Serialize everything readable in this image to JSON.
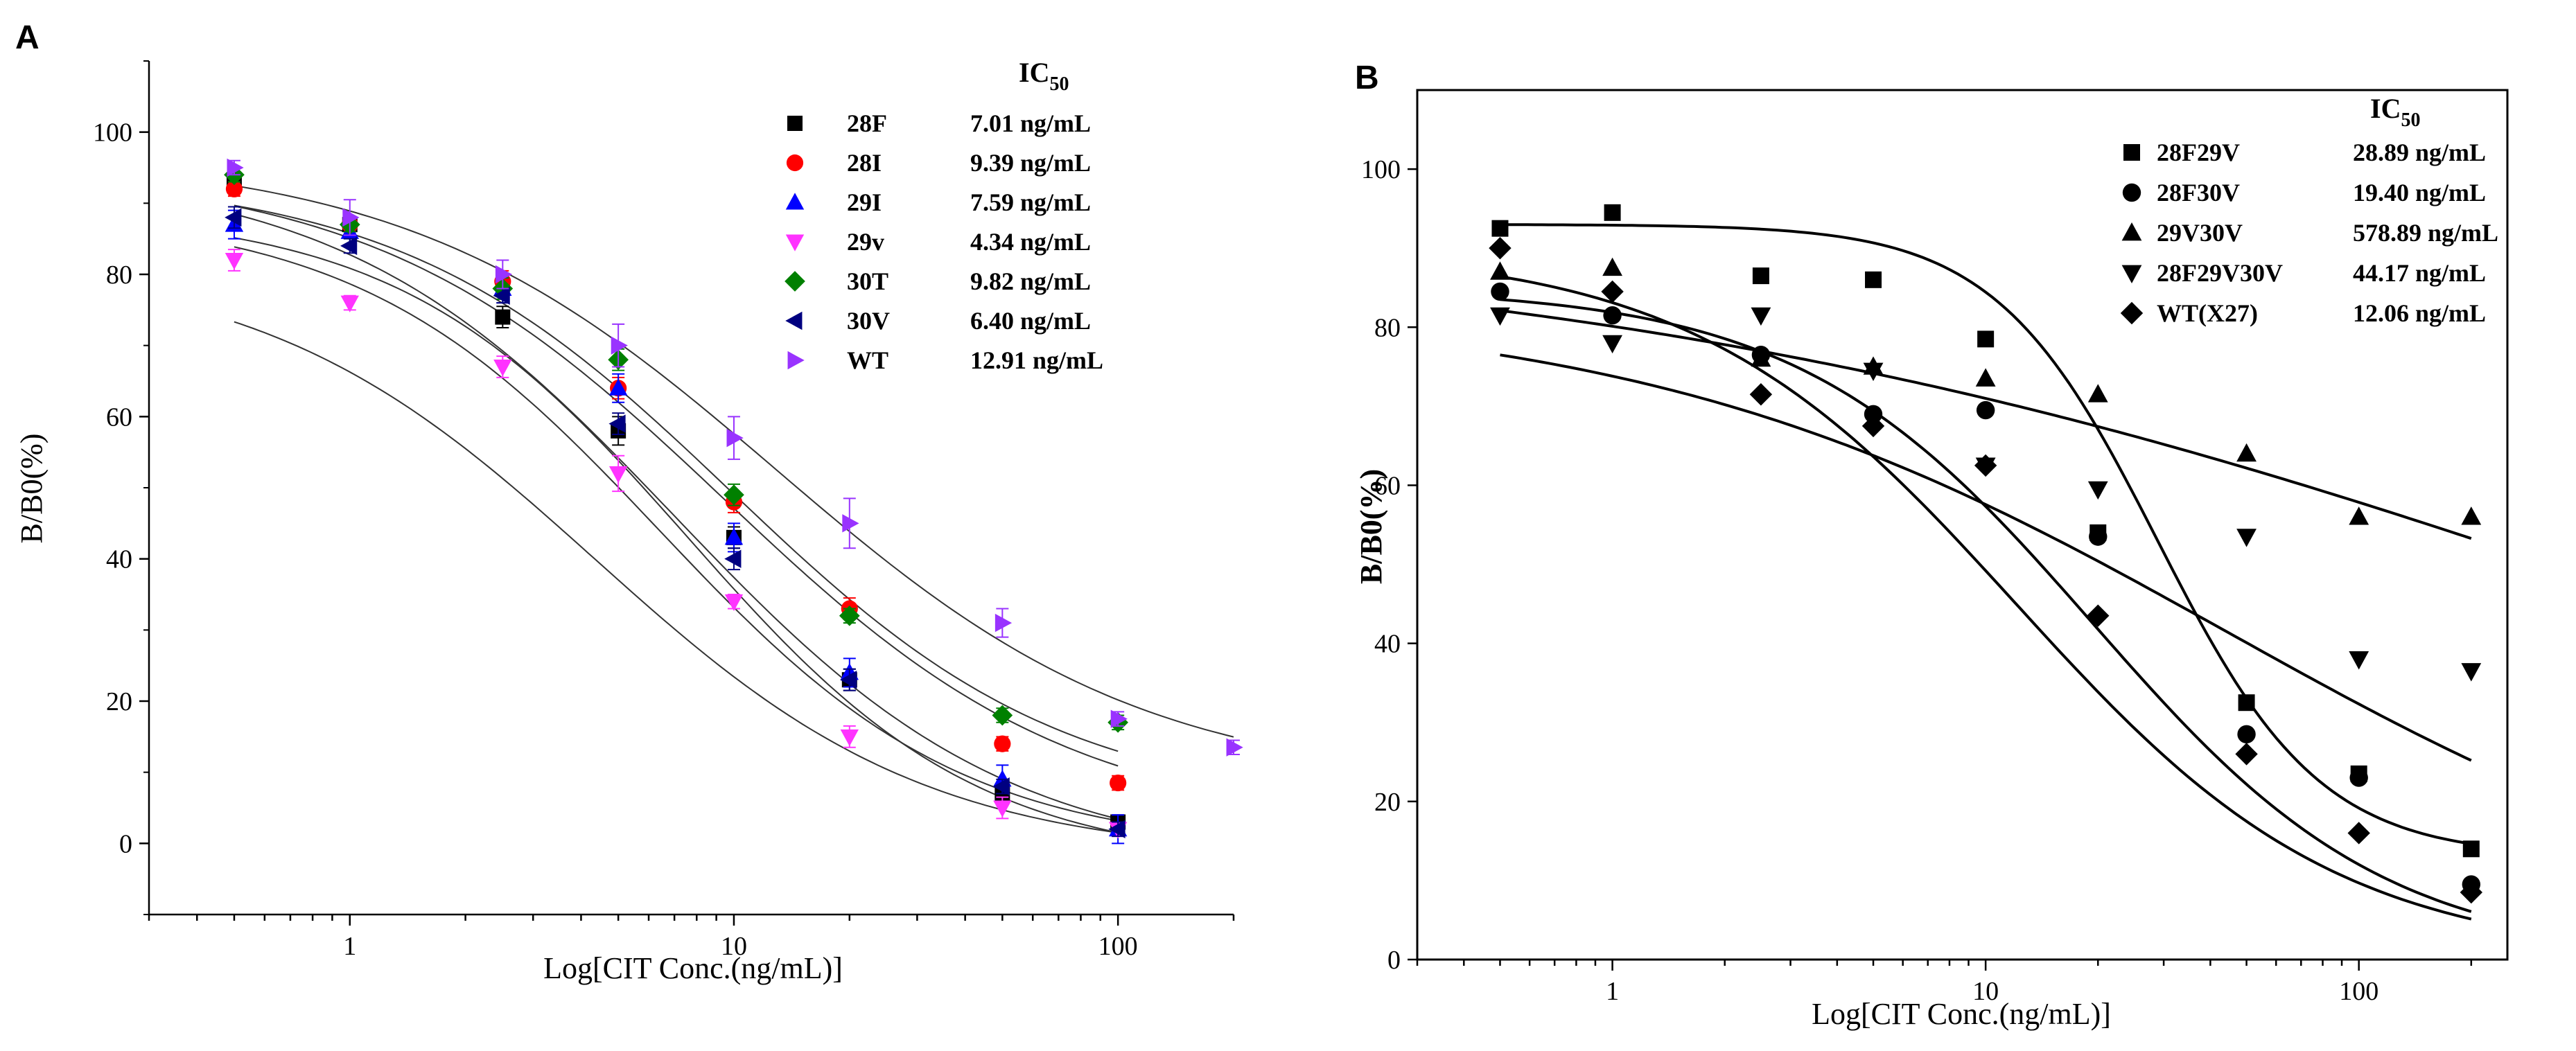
{
  "chart_data": [
    {
      "type": "scatter",
      "panel_label": "A",
      "xlabel": "Log[CIT Conc.(ng/mL)]",
      "ylabel": "B/B0(%)",
      "x_scale": "log",
      "xlim": [
        0.3,
        200
      ],
      "ylim": [
        -10,
        110
      ],
      "x_ticks": [
        1,
        10,
        100
      ],
      "y_ticks": [
        0,
        20,
        40,
        60,
        80,
        100
      ],
      "legend_header": "IC",
      "legend_header_sub": "50",
      "unit": "ng/mL",
      "x": [
        0.5,
        1,
        2.5,
        5,
        10,
        20,
        50,
        100
      ],
      "series": [
        {
          "name": "28F",
          "ic50": "7.01",
          "color": "#000000",
          "marker": "square",
          "values": [
            93,
            87,
            74,
            58,
            43,
            23,
            7,
            3
          ],
          "errors": [
            1,
            1,
            1.5,
            2,
            1.5,
            1.5,
            1,
            1
          ],
          "fit": {
            "top": 95,
            "bottom": -3,
            "ic50": 7.01,
            "hill": 1.0,
            "xmax": 100
          }
        },
        {
          "name": "28I",
          "ic50": "9.39",
          "color": "#ff0000",
          "marker": "circle",
          "values": [
            92,
            87,
            79,
            64,
            48,
            33,
            14,
            8.5
          ],
          "errors": [
            1,
            1,
            1.5,
            1.5,
            1.5,
            1.5,
            1,
            1
          ],
          "fit": {
            "top": 95,
            "bottom": 2,
            "ic50": 9.39,
            "hill": 0.95,
            "xmax": 100
          }
        },
        {
          "name": "29I",
          "ic50": "7.59",
          "color": "#0000ff",
          "marker": "triangle-up",
          "values": [
            87,
            86,
            78,
            64,
            43,
            24,
            9,
            2
          ],
          "errors": [
            2,
            2,
            2,
            2,
            2,
            2,
            2,
            2
          ],
          "fit": {
            "top": 89,
            "bottom": -3,
            "ic50": 7.59,
            "hill": 1.15,
            "xmax": 100
          }
        },
        {
          "name": "29v",
          "ic50": "4.34",
          "color": "#ff33ff",
          "marker": "triangle-down",
          "values": [
            82,
            76,
            67,
            52,
            34,
            15,
            5,
            2
          ],
          "errors": [
            1.5,
            1,
            1.5,
            2.5,
            1,
            1.5,
            1.5,
            1
          ],
          "fit": {
            "top": 82,
            "bottom": -2,
            "ic50": 4.34,
            "hill": 1.0,
            "xmax": 100
          }
        },
        {
          "name": "30T",
          "ic50": "9.82",
          "color": "#008000",
          "marker": "diamond",
          "values": [
            94,
            87,
            78,
            68,
            49,
            32,
            18,
            17
          ],
          "errors": [
            1,
            1,
            1.5,
            1.5,
            1.5,
            1,
            1,
            1
          ],
          "fit": {
            "top": 94,
            "bottom": 5,
            "ic50": 9.82,
            "hill": 1.0,
            "xmax": 100
          }
        },
        {
          "name": "30V",
          "ic50": "6.40",
          "color": "#000080",
          "marker": "triangle-left",
          "values": [
            88,
            84,
            77,
            59,
            40,
            23,
            8,
            2
          ],
          "errors": [
            1.5,
            1,
            1,
            1.5,
            1.5,
            1.5,
            1,
            1
          ],
          "fit": {
            "top": 89,
            "bottom": -1,
            "ic50": 6.4,
            "hill": 1.1,
            "xmax": 100
          }
        },
        {
          "name": "WT",
          "ic50": "12.91",
          "color": "#9933ff",
          "marker": "triangle-right",
          "values": [
            95,
            88,
            80,
            70,
            57,
            45,
            31,
            17.5,
            13.5
          ],
          "errors": [
            1,
            2.5,
            2,
            3,
            3,
            3.5,
            2,
            1,
            1
          ],
          "x_override": [
            0.5,
            1,
            2.5,
            5,
            10,
            20,
            50,
            100,
            200
          ],
          "fit": {
            "top": 97,
            "bottom": 8,
            "ic50": 12.91,
            "hill": 0.9,
            "xmax": 200
          }
        }
      ]
    },
    {
      "type": "scatter",
      "panel_label": "B",
      "xlabel": "Log[CIT Conc.(ng/mL)]",
      "ylabel": "B/B0(%)",
      "x_scale": "log",
      "xlim": [
        0.3,
        250
      ],
      "ylim": [
        0,
        110
      ],
      "x_ticks": [
        1,
        10,
        100
      ],
      "y_ticks": [
        0,
        20,
        40,
        60,
        80,
        100
      ],
      "legend_header": "IC",
      "legend_header_sub": "50",
      "unit": "ng/mL",
      "x": [
        0.5,
        1,
        2.5,
        5,
        10,
        20,
        50,
        100,
        200
      ],
      "series": [
        {
          "name": "28F29V",
          "ic50": "28.89",
          "color": "#000000",
          "marker": "square",
          "values": [
            92.5,
            94.5,
            86.5,
            86,
            78.5,
            54,
            32.5,
            23.5,
            14
          ],
          "fit": {
            "top": 93,
            "bottom": 13,
            "ic50": 28.89,
            "hill": 2.0
          }
        },
        {
          "name": "28F30V",
          "ic50": "19.40",
          "color": "#000000",
          "marker": "circle",
          "values": [
            84.5,
            81.5,
            76.5,
            69,
            69.5,
            53.5,
            28.5,
            23,
            9.5
          ],
          "fit": {
            "top": 85,
            "bottom": 0,
            "ic50": 19.4,
            "hill": 1.1
          }
        },
        {
          "name": "29V30V",
          "ic50": "578.89",
          "color": "#000000",
          "marker": "triangle-up",
          "values": [
            87,
            87.5,
            76,
            75,
            73.5,
            71.5,
            64,
            56,
            56
          ],
          "fit": {
            "top": 92,
            "bottom": 0,
            "ic50": 578.89,
            "hill": 0.3
          }
        },
        {
          "name": "28F29V30V",
          "ic50": "44.17",
          "color": "#000000",
          "marker": "triangle-down",
          "values": [
            81.5,
            78,
            81.5,
            74.5,
            62.5,
            59.5,
            53.5,
            38,
            36.5
          ],
          "fit": {
            "top": 83,
            "bottom": 0,
            "ic50": 44.17,
            "hill": 0.55
          }
        },
        {
          "name": "WT(X27)",
          "ic50": "12.06",
          "color": "#000000",
          "marker": "diamond",
          "values": [
            90,
            84.5,
            71.5,
            67.5,
            62.5,
            43.5,
            26,
            16,
            8.5
          ],
          "fit": {
            "top": 90,
            "bottom": 0,
            "ic50": 12.06,
            "hill": 1.0
          }
        }
      ]
    }
  ]
}
